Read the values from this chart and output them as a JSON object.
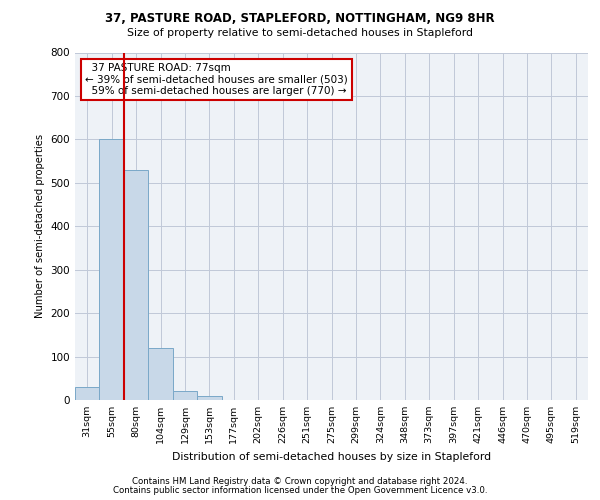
{
  "title1": "37, PASTURE ROAD, STAPLEFORD, NOTTINGHAM, NG9 8HR",
  "title2": "Size of property relative to semi-detached houses in Stapleford",
  "xlabel": "Distribution of semi-detached houses by size in Stapleford",
  "ylabel": "Number of semi-detached properties",
  "footer1": "Contains HM Land Registry data © Crown copyright and database right 2024.",
  "footer2": "Contains public sector information licensed under the Open Government Licence v3.0.",
  "categories": [
    "31sqm",
    "55sqm",
    "80sqm",
    "104sqm",
    "129sqm",
    "153sqm",
    "177sqm",
    "202sqm",
    "226sqm",
    "251sqm",
    "275sqm",
    "299sqm",
    "324sqm",
    "348sqm",
    "373sqm",
    "397sqm",
    "421sqm",
    "446sqm",
    "470sqm",
    "495sqm",
    "519sqm"
  ],
  "values": [
    30,
    600,
    530,
    120,
    20,
    10,
    0,
    0,
    0,
    0,
    0,
    0,
    0,
    0,
    0,
    0,
    0,
    0,
    0,
    0,
    0
  ],
  "bar_color": "#c8d8e8",
  "bar_edge_color": "#7aa8c8",
  "subject_label": "37 PASTURE ROAD: 77sqm",
  "pct_smaller": 39,
  "pct_smaller_n": 503,
  "pct_larger": 59,
  "pct_larger_n": 770,
  "annotation_box_color": "#cc0000",
  "ylim": [
    0,
    800
  ],
  "yticks": [
    0,
    100,
    200,
    300,
    400,
    500,
    600,
    700,
    800
  ],
  "grid_color": "#c0c8d8",
  "bg_color": "#eef2f7"
}
